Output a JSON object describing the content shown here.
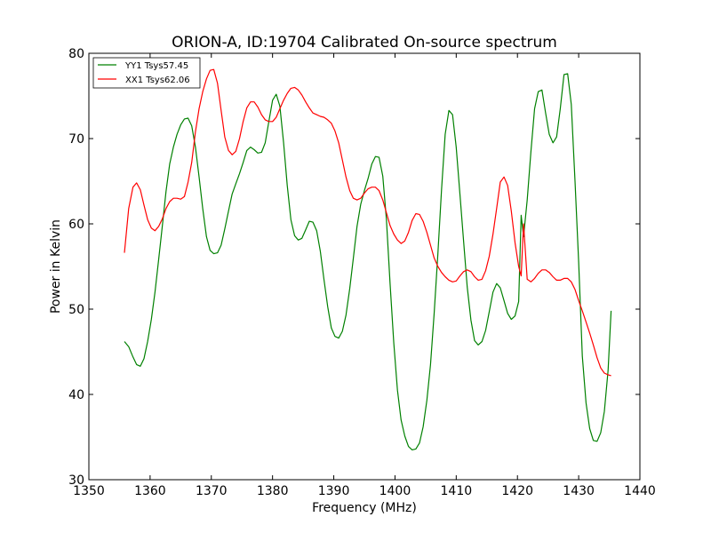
{
  "chart_data": {
    "type": "line",
    "title": "ORION-A, ID:19704 Calibrated On-source spectrum",
    "xlabel": "Frequency (MHz)",
    "ylabel": "Power in Kelvin",
    "xlim": [
      1350,
      1440
    ],
    "ylim": [
      30,
      80
    ],
    "xticks": [
      1350,
      1360,
      1370,
      1380,
      1390,
      1400,
      1410,
      1420,
      1430,
      1440
    ],
    "yticks": [
      30,
      40,
      50,
      60,
      70,
      80
    ],
    "grid": false,
    "legend_position": "top-left",
    "series": [
      {
        "name": "YY1 Tsys57.45",
        "color": "#008000",
        "x": [
          1355.8,
          1356.5,
          1357.2,
          1357.8,
          1358.4,
          1359.0,
          1359.6,
          1360.2,
          1360.8,
          1361.4,
          1362.0,
          1362.6,
          1363.2,
          1363.8,
          1364.4,
          1365.0,
          1365.6,
          1366.2,
          1366.8,
          1367.4,
          1368.0,
          1368.6,
          1369.2,
          1369.8,
          1370.4,
          1371.0,
          1371.6,
          1372.2,
          1372.8,
          1373.4,
          1374.0,
          1374.6,
          1375.2,
          1375.8,
          1376.4,
          1377.0,
          1377.6,
          1378.2,
          1378.8,
          1379.4,
          1380.0,
          1380.6,
          1381.2,
          1381.8,
          1382.4,
          1383.0,
          1383.6,
          1384.2,
          1384.8,
          1385.4,
          1386.0,
          1386.6,
          1387.2,
          1387.8,
          1388.4,
          1389.0,
          1389.6,
          1390.2,
          1390.8,
          1391.4,
          1392.0,
          1392.6,
          1393.2,
          1393.8,
          1394.4,
          1395.0,
          1395.6,
          1396.2,
          1396.8,
          1397.4,
          1398.0,
          1398.6,
          1399.2,
          1399.8,
          1400.4,
          1401.0,
          1401.6,
          1402.2,
          1402.8,
          1403.4,
          1404.0,
          1404.6,
          1405.2,
          1405.8,
          1406.4,
          1407.0,
          1407.6,
          1408.2,
          1408.8,
          1409.4,
          1410.0,
          1410.6,
          1411.2,
          1411.8,
          1412.4,
          1413.0,
          1413.6,
          1414.2,
          1414.8,
          1415.4,
          1416.0,
          1416.6,
          1417.2,
          1417.8,
          1418.4,
          1419.0,
          1419.6,
          1420.2,
          1420.6,
          1421.0,
          1421.6,
          1422.2,
          1422.8,
          1423.4,
          1424.0,
          1424.6,
          1425.2,
          1425.8,
          1426.4,
          1427.0,
          1427.6,
          1428.2,
          1428.8,
          1429.4,
          1430.0,
          1430.6,
          1431.2,
          1431.8,
          1432.4,
          1433.0,
          1433.6,
          1434.2,
          1434.8,
          1435.3
        ],
        "y": [
          46.2,
          45.6,
          44.4,
          43.5,
          43.3,
          44.2,
          46.2,
          48.8,
          52.0,
          55.8,
          59.8,
          63.8,
          67.0,
          69.0,
          70.5,
          71.6,
          72.3,
          72.4,
          71.5,
          69.0,
          65.5,
          61.8,
          58.5,
          56.9,
          56.5,
          56.6,
          57.5,
          59.4,
          61.5,
          63.5,
          64.7,
          65.9,
          67.2,
          68.6,
          69.0,
          68.7,
          68.3,
          68.4,
          69.5,
          72.0,
          74.5,
          75.2,
          73.8,
          69.5,
          64.5,
          60.5,
          58.6,
          58.1,
          58.3,
          59.3,
          60.3,
          60.2,
          59.2,
          56.8,
          53.5,
          50.3,
          47.8,
          46.8,
          46.6,
          47.4,
          49.3,
          52.4,
          56.0,
          59.7,
          62.3,
          63.9,
          65.3,
          67.0,
          67.9,
          67.8,
          65.6,
          60.5,
          53.0,
          46.0,
          40.5,
          37.0,
          35.1,
          33.9,
          33.5,
          33.6,
          34.3,
          36.2,
          39.3,
          43.5,
          49.5,
          56.5,
          64.0,
          70.5,
          73.3,
          72.8,
          69.0,
          63.5,
          58.0,
          52.6,
          48.7,
          46.3,
          45.8,
          46.2,
          47.5,
          49.7,
          52.0,
          53.0,
          52.5,
          51.0,
          49.5,
          48.8,
          49.2,
          50.9,
          61.0,
          58.5,
          62.8,
          68.5,
          73.5,
          75.5,
          75.7,
          73.0,
          70.5,
          69.5,
          70.2,
          73.5,
          77.5,
          77.6,
          74.0,
          65.0,
          55.5,
          44.5,
          39.0,
          36.0,
          34.6,
          34.5,
          35.5,
          38.0,
          42.8,
          49.8
        ]
      },
      {
        "name": "XX1 Tsys62.06",
        "color": "#ff0000",
        "x": [
          1355.8,
          1356.5,
          1357.2,
          1357.8,
          1358.4,
          1359.0,
          1359.6,
          1360.2,
          1360.8,
          1361.4,
          1362.0,
          1362.6,
          1363.2,
          1363.8,
          1364.4,
          1365.0,
          1365.6,
          1366.2,
          1366.8,
          1367.4,
          1368.0,
          1368.6,
          1369.2,
          1369.8,
          1370.4,
          1371.0,
          1371.6,
          1372.2,
          1372.8,
          1373.4,
          1374.0,
          1374.6,
          1375.2,
          1375.8,
          1376.4,
          1377.0,
          1377.6,
          1378.2,
          1378.8,
          1379.4,
          1380.0,
          1380.6,
          1381.2,
          1381.8,
          1382.4,
          1383.0,
          1383.6,
          1384.2,
          1384.8,
          1385.4,
          1386.0,
          1386.6,
          1387.2,
          1387.8,
          1388.4,
          1389.0,
          1389.6,
          1390.2,
          1390.8,
          1391.4,
          1392.0,
          1392.6,
          1393.2,
          1393.8,
          1394.4,
          1395.0,
          1395.6,
          1396.2,
          1396.8,
          1397.4,
          1398.0,
          1398.6,
          1399.2,
          1399.8,
          1400.4,
          1401.0,
          1401.6,
          1402.2,
          1402.8,
          1403.4,
          1404.0,
          1404.6,
          1405.2,
          1405.8,
          1406.4,
          1407.0,
          1407.6,
          1408.2,
          1408.8,
          1409.4,
          1410.0,
          1410.6,
          1411.2,
          1411.8,
          1412.4,
          1413.0,
          1413.6,
          1414.2,
          1414.8,
          1415.4,
          1416.0,
          1416.6,
          1417.2,
          1417.8,
          1418.4,
          1419.0,
          1419.6,
          1420.2,
          1420.6,
          1421.0,
          1421.6,
          1422.2,
          1422.8,
          1423.4,
          1424.0,
          1424.6,
          1425.2,
          1425.8,
          1426.4,
          1427.0,
          1427.6,
          1428.2,
          1428.8,
          1429.4,
          1430.0,
          1430.6,
          1431.2,
          1431.8,
          1432.4,
          1433.0,
          1433.6,
          1434.2,
          1434.8,
          1435.3
        ],
        "y": [
          56.6,
          61.8,
          64.3,
          64.8,
          64.0,
          62.2,
          60.5,
          59.5,
          59.2,
          59.7,
          60.6,
          61.8,
          62.6,
          63.0,
          63.0,
          62.9,
          63.2,
          64.9,
          67.2,
          70.8,
          73.5,
          75.5,
          77.0,
          78.0,
          78.1,
          76.5,
          73.3,
          70.2,
          68.6,
          68.1,
          68.5,
          70.0,
          72.0,
          73.6,
          74.3,
          74.3,
          73.7,
          72.8,
          72.2,
          72.0,
          72.0,
          72.5,
          73.5,
          74.5,
          75.3,
          75.9,
          76.0,
          75.7,
          75.1,
          74.3,
          73.6,
          73.0,
          72.8,
          72.6,
          72.5,
          72.2,
          71.8,
          70.9,
          69.5,
          67.5,
          65.5,
          63.9,
          63.0,
          62.8,
          63.0,
          63.6,
          64.1,
          64.3,
          64.3,
          63.9,
          62.8,
          61.3,
          59.8,
          58.8,
          58.1,
          57.7,
          58.0,
          59.0,
          60.4,
          61.2,
          61.1,
          60.3,
          59.0,
          57.5,
          56.0,
          55.0,
          54.3,
          53.8,
          53.4,
          53.2,
          53.3,
          53.9,
          54.4,
          54.6,
          54.4,
          53.8,
          53.4,
          53.5,
          54.5,
          56.2,
          58.8,
          61.8,
          64.9,
          65.5,
          64.5,
          61.5,
          57.8,
          55.0,
          53.9,
          60.0,
          53.5,
          53.2,
          53.6,
          54.2,
          54.6,
          54.6,
          54.3,
          53.8,
          53.4,
          53.4,
          53.6,
          53.6,
          53.2,
          52.3,
          51.0,
          49.8,
          48.5,
          47.2,
          45.8,
          44.3,
          43.1,
          42.5,
          42.3,
          42.2
        ]
      }
    ]
  }
}
